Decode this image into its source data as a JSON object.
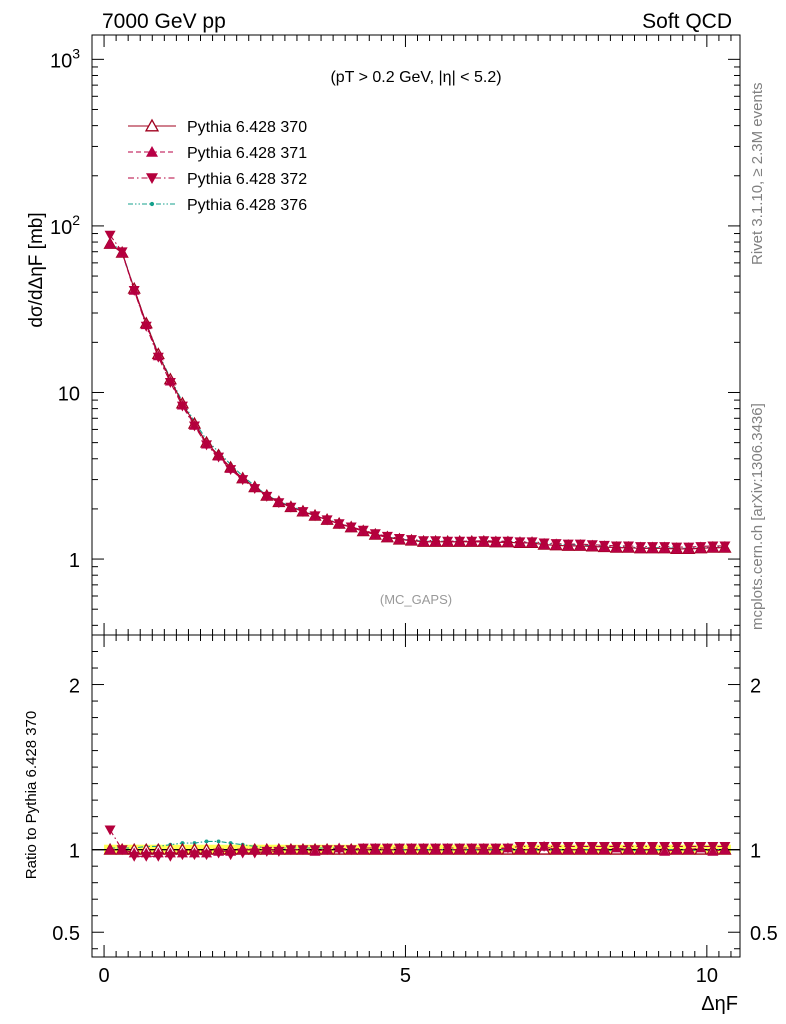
{
  "header": {
    "left": "7000 GeV pp",
    "right": "Soft QCD"
  },
  "side": {
    "rivet": "Rivet 3.1.10, ≥ 2.3M events",
    "mcplots": "mcplots.cern.ch [arXiv:1306.3436]"
  },
  "cut_label": "(pT > 0.2 GeV, |η| < 5.2)",
  "analysis_label": "(MC_GAPS)",
  "colors": {
    "s370": "#a0001e",
    "s371": "#b80046",
    "s372": "#b4003c",
    "s376": "#14a08c",
    "band": "#ffff55",
    "frame": "#000000"
  },
  "chart_data": [
    {
      "panel": "main",
      "type": "line",
      "ylabel": "dσ/dΔηF [mb]",
      "yscale": "log",
      "ylim": [
        0.35,
        1400
      ],
      "xlim": [
        -0.2,
        10.55
      ],
      "y_ticks": [
        "1",
        "10",
        "10^2",
        "10^3"
      ],
      "x": [
        0.1,
        0.3,
        0.5,
        0.7,
        0.9,
        1.1,
        1.3,
        1.5,
        1.7,
        1.9,
        2.1,
        2.3,
        2.5,
        2.7,
        2.9,
        3.1,
        3.3,
        3.5,
        3.7,
        3.9,
        4.1,
        4.3,
        4.5,
        4.7,
        4.9,
        5.1,
        5.3,
        5.5,
        5.7,
        5.9,
        6.1,
        6.3,
        6.5,
        6.7,
        6.9,
        7.1,
        7.3,
        7.5,
        7.7,
        7.9,
        8.1,
        8.3,
        8.5,
        8.7,
        8.9,
        9.1,
        9.3,
        9.5,
        9.7,
        9.9,
        10.1,
        10.3
      ],
      "series": [
        {
          "name": "Pythia 6.428 370",
          "marker": "triangle-up-open",
          "line": "solid",
          "values": [
            78,
            69,
            42,
            26,
            17,
            12,
            8.6,
            6.5,
            5.0,
            4.2,
            3.55,
            3.05,
            2.7,
            2.4,
            2.2,
            2.05,
            1.93,
            1.82,
            1.72,
            1.63,
            1.55,
            1.47,
            1.4,
            1.35,
            1.31,
            1.29,
            1.27,
            1.27,
            1.27,
            1.27,
            1.27,
            1.27,
            1.26,
            1.26,
            1.25,
            1.25,
            1.22,
            1.21,
            1.2,
            1.2,
            1.19,
            1.18,
            1.17,
            1.17,
            1.16,
            1.16,
            1.16,
            1.15,
            1.15,
            1.16,
            1.17,
            1.17
          ]
        },
        {
          "name": "Pythia 6.428 371",
          "marker": "triangle-up",
          "line": "dashed",
          "values": [
            78,
            69,
            41,
            25.5,
            16.6,
            11.7,
            8.4,
            6.35,
            4.9,
            4.15,
            3.5,
            3.05,
            2.7,
            2.4,
            2.2,
            2.05,
            1.93,
            1.82,
            1.72,
            1.63,
            1.55,
            1.47,
            1.4,
            1.35,
            1.31,
            1.29,
            1.27,
            1.27,
            1.27,
            1.27,
            1.27,
            1.27,
            1.26,
            1.26,
            1.25,
            1.25,
            1.22,
            1.21,
            1.2,
            1.2,
            1.19,
            1.18,
            1.17,
            1.17,
            1.16,
            1.16,
            1.16,
            1.15,
            1.15,
            1.16,
            1.17,
            1.17
          ]
        },
        {
          "name": "Pythia 6.428 372",
          "marker": "triangle-down",
          "line": "dashdot",
          "values": [
            88,
            70,
            41,
            25,
            16.3,
            11.5,
            8.3,
            6.3,
            4.85,
            4.1,
            3.45,
            3.0,
            2.65,
            2.38,
            2.18,
            2.05,
            1.93,
            1.82,
            1.72,
            1.63,
            1.56,
            1.49,
            1.42,
            1.37,
            1.33,
            1.31,
            1.29,
            1.29,
            1.28,
            1.28,
            1.28,
            1.29,
            1.28,
            1.28,
            1.27,
            1.27,
            1.25,
            1.24,
            1.23,
            1.23,
            1.22,
            1.21,
            1.2,
            1.2,
            1.19,
            1.19,
            1.19,
            1.18,
            1.18,
            1.19,
            1.2,
            1.2
          ]
        },
        {
          "name": "Pythia 6.428 376",
          "marker": "dot",
          "line": "dashdotdot",
          "values": [
            80,
            70,
            42,
            26,
            17.2,
            12.2,
            8.8,
            6.7,
            5.2,
            4.4,
            3.7,
            3.15,
            2.75,
            2.42,
            2.22,
            2.07,
            1.95,
            1.83,
            1.73,
            1.64,
            1.56,
            1.48,
            1.41,
            1.36,
            1.32,
            1.3,
            1.28,
            1.28,
            1.28,
            1.28,
            1.28,
            1.28,
            1.27,
            1.27,
            1.26,
            1.26,
            1.24,
            1.23,
            1.22,
            1.22,
            1.2,
            1.19,
            1.18,
            1.18,
            1.17,
            1.17,
            1.17,
            1.16,
            1.16,
            1.17,
            1.18,
            1.18
          ]
        }
      ]
    },
    {
      "panel": "ratio",
      "type": "line",
      "ylabel": "Ratio to Pythia 6.428 370",
      "xlabel": "ΔηF",
      "ylim": [
        0.35,
        2.3
      ],
      "xlim": [
        -0.2,
        10.55
      ],
      "y_ticks": [
        "0.5",
        "1",
        "2"
      ],
      "x_ticks": [
        "0",
        "5",
        "10"
      ],
      "band": {
        "lower": 0.97,
        "upper": 1.03
      },
      "series": [
        {
          "name": "Pythia 6.428 370",
          "values": [
            1.0,
            1.0,
            1.0,
            1.0,
            1.0,
            1.0,
            1.0,
            1.0,
            1.0,
            1.0,
            1.0,
            1.0,
            1.0,
            1.0,
            1.0,
            1.0,
            1.0,
            1.0,
            1.0,
            1.0,
            1.0,
            1.0,
            1.0,
            1.0,
            1.0,
            1.0,
            1.0,
            1.0,
            1.0,
            1.0,
            1.0,
            1.0,
            1.0,
            1.0,
            1.0,
            1.0,
            1.0,
            1.0,
            1.0,
            1.0,
            1.0,
            1.0,
            1.0,
            1.0,
            1.0,
            1.0,
            1.0,
            1.0,
            1.0,
            1.0,
            1.0,
            1.0
          ]
        },
        {
          "name": "Pythia 6.428 371",
          "values": [
            1.0,
            1.0,
            0.98,
            0.98,
            0.98,
            0.98,
            0.98,
            0.98,
            0.98,
            0.99,
            0.99,
            1.0,
            1.0,
            1.0,
            1.0,
            1.0,
            1.0,
            0.99,
            1.0,
            1.01,
            1.0,
            1.0,
            1.0,
            1.0,
            1.0,
            1.0,
            1.0,
            1.0,
            1.0,
            1.0,
            1.0,
            1.0,
            1.0,
            1.01,
            1.0,
            1.0,
            1.02,
            1.0,
            1.0,
            1.0,
            1.0,
            1.0,
            1.01,
            1.0,
            1.0,
            1.0,
            0.99,
            1.0,
            1.0,
            1.01,
            0.99,
            1.0
          ]
        },
        {
          "name": "Pythia 6.428 372",
          "values": [
            1.12,
            1.0,
            0.96,
            0.96,
            0.96,
            0.96,
            0.97,
            0.97,
            0.97,
            0.98,
            0.97,
            0.98,
            0.98,
            0.99,
            0.99,
            1.0,
            1.0,
            1.0,
            1.0,
            1.0,
            1.0,
            1.01,
            1.01,
            1.01,
            1.01,
            1.01,
            1.01,
            1.01,
            1.01,
            1.01,
            1.01,
            1.01,
            1.01,
            1.01,
            1.02,
            1.02,
            1.02,
            1.02,
            1.02,
            1.02,
            1.02,
            1.02,
            1.02,
            1.02,
            1.02,
            1.02,
            1.02,
            1.02,
            1.02,
            1.02,
            1.02,
            1.02
          ]
        },
        {
          "name": "Pythia 6.428 376",
          "values": [
            1.01,
            1.01,
            1.01,
            1.02,
            1.02,
            1.03,
            1.04,
            1.04,
            1.05,
            1.05,
            1.04,
            1.03,
            1.02,
            1.01,
            1.01,
            1.01,
            1.01,
            1.01,
            1.01,
            1.01,
            1.0,
            1.0,
            1.0,
            1.0,
            1.0,
            1.0,
            1.0,
            1.0,
            1.0,
            1.0,
            1.0,
            1.0,
            1.0,
            1.0,
            1.0,
            1.0,
            1.0,
            1.0,
            1.0,
            1.0,
            1.0,
            0.99,
            1.0,
            1.0,
            0.99,
            1.0,
            1.0,
            1.0,
            1.0,
            0.99,
            1.0,
            1.0
          ]
        }
      ]
    }
  ]
}
